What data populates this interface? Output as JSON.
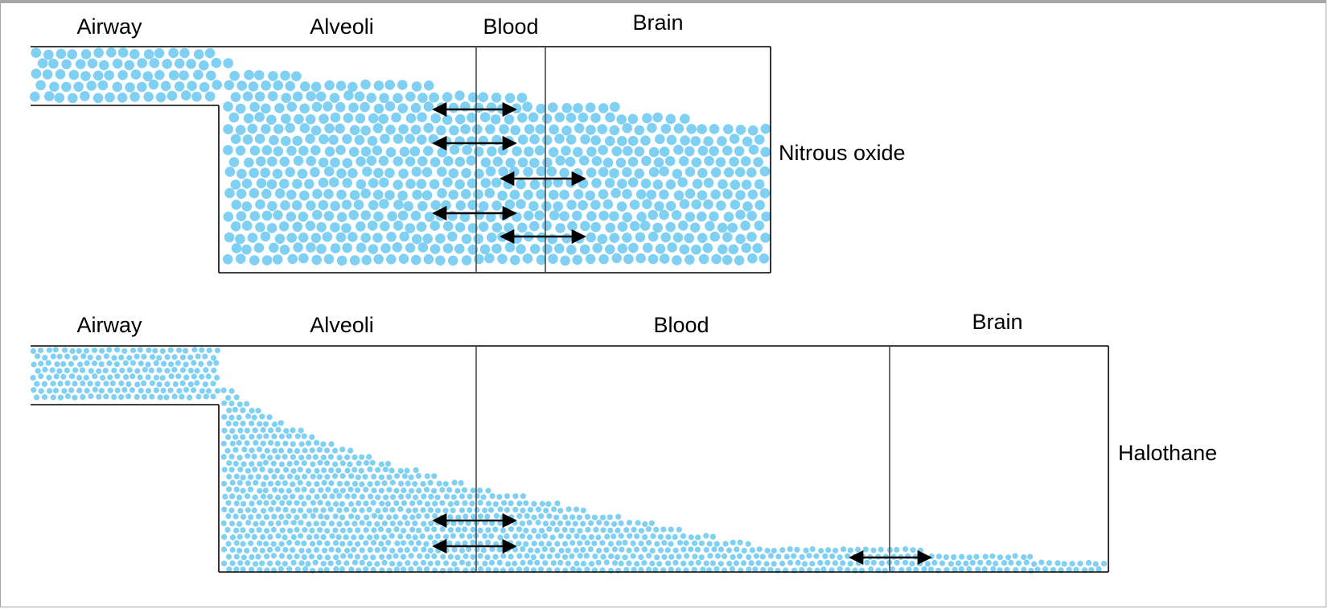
{
  "colors": {
    "molecule": "#7fd0f2",
    "outline": "#000000",
    "divider": "#4a4a4a",
    "frame": "#a6a6a6"
  },
  "panels": [
    {
      "gas": "Nitrous oxide",
      "compartments": [
        "Airway",
        "Alveoli",
        "Blood",
        "Brain"
      ],
      "relative_concentration": {
        "airway": 1.0,
        "alveoli_entry": 0.95,
        "alveoli_exit": 0.82,
        "blood": 0.78,
        "brain": 0.66
      },
      "exchange_arrows": 5
    },
    {
      "gas": "Halothane",
      "compartments": [
        "Airway",
        "Alveoli",
        "Blood",
        "Brain"
      ],
      "relative_concentration": {
        "airway": 1.0,
        "alveoli_entry": 0.92,
        "alveoli_exit": 0.38,
        "blood": 0.11,
        "brain": 0.06
      },
      "exchange_arrows": 3
    }
  ]
}
